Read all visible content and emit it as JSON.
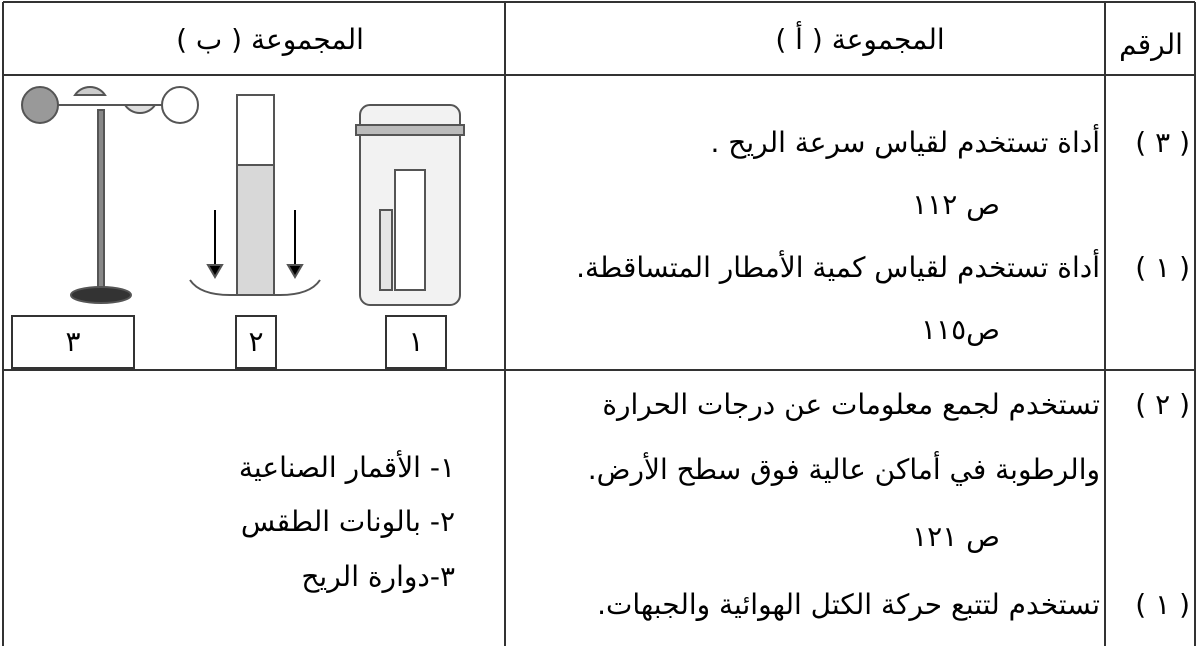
{
  "table": {
    "header": [
      "الرقم",
      "المجموعة ( أ )",
      "المجموعة ( ب )"
    ],
    "rows": [
      {
        "numbers": [
          "( ٣ )",
          "( ١ )"
        ],
        "group_a": [
          "أداة تستخدم لقياس سرعة الريح  .",
          "ص ١١٢",
          "أداة تستخدم لقياس كمية الأمطار المتساقطة.",
          "ص١١٥"
        ],
        "group_b": [
          "٣",
          "٢",
          "١"
        ]
      },
      {
        "numbers": [
          "( ٢ )",
          "( ١ )"
        ],
        "group_a": [
          "تستخدم لجمع معلومات عن درجات الحرارة",
          "والرطوبة في أماكن عالية فوق سطح الأرض.",
          "ص ١٢١",
          "تستخدم لتتبع حركة الكتل الهوائية والجبهات."
        ],
        "group_b": [
          "١- الأقمار الصناعية",
          "٢- بالونات الطقس",
          "٣-دوارة الريح"
        ]
      }
    ]
  }
}
